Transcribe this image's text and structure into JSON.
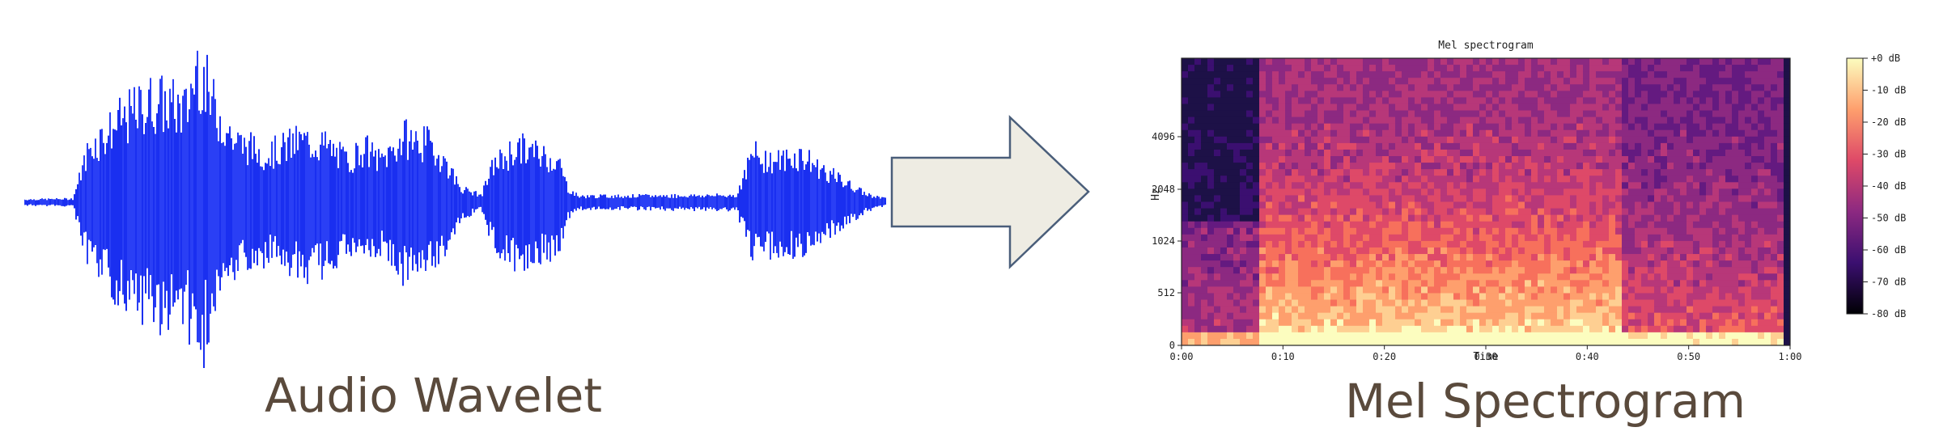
{
  "captions": {
    "audio": "Audio Wavelet",
    "mel": "Mel Spectrogram"
  },
  "chart_data": {
    "type": "heatmap",
    "title": "Mel spectrogram",
    "xlabel": "Time",
    "ylabel": "Hz",
    "x_ticks": [
      "0:00",
      "0:10",
      "0:20",
      "0:30",
      "0:40",
      "0:50",
      "1:00"
    ],
    "y_ticks": [
      "0",
      "512",
      "1024",
      "2048",
      "4096"
    ],
    "colorbar_ticks": [
      "+0 dB",
      "-10 dB",
      "-20 dB",
      "-30 dB",
      "-40 dB",
      "-50 dB",
      "-60 dB",
      "-70 dB",
      "-80 dB"
    ],
    "colormap": "magma",
    "colors": {
      "waveform": "#1a2ff0",
      "arrow_fill": "#eeece3",
      "arrow_stroke": "#4a5e7a",
      "caption": "#5a4a3c"
    }
  }
}
